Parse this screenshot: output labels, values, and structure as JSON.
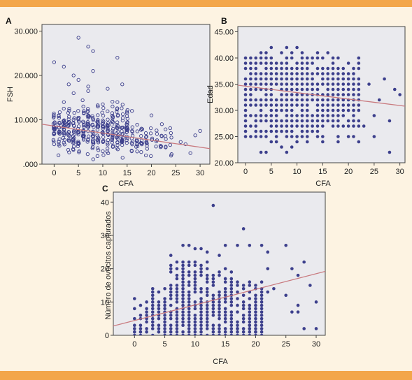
{
  "colors": {
    "frame_bands": "#f3a64a",
    "background": "#fdf3e2",
    "plot_bg": "#eaeaee",
    "points": "#3c3f8c",
    "fit_line": "#c97a7f"
  },
  "chart_data": [
    {
      "panel": "A",
      "type": "scatter",
      "xlabel": "CFA",
      "ylabel": "FSH",
      "xlim": [
        -2.5,
        32
      ],
      "ylim": [
        0,
        31500
      ],
      "x_ticks": [
        "0",
        "5",
        "10",
        "15",
        "20",
        "25",
        "30"
      ],
      "y_ticks": [
        ".000",
        "10.000",
        "20.000",
        "30.000"
      ],
      "marker": "open-circle",
      "fit_line": {
        "x": [
          -2.5,
          32
        ],
        "y": [
          9000,
          3500
        ]
      },
      "points": [
        [
          0,
          23000
        ],
        [
          2,
          22000
        ],
        [
          2,
          14000
        ],
        [
          3,
          18000
        ],
        [
          4,
          20000
        ],
        [
          4,
          16000
        ],
        [
          5,
          28500
        ],
        [
          5,
          19000
        ],
        [
          6,
          13000
        ],
        [
          7,
          26500
        ],
        [
          7,
          17500
        ],
        [
          7,
          16500
        ],
        [
          8,
          25500
        ],
        [
          8,
          21000
        ],
        [
          9,
          13000
        ],
        [
          10,
          13500
        ],
        [
          11,
          17000
        ],
        [
          12,
          13000
        ],
        [
          13,
          24000
        ],
        [
          13,
          14000
        ],
        [
          14,
          18000
        ],
        [
          15,
          11500
        ],
        [
          16,
          12000
        ],
        [
          20,
          11000
        ],
        [
          26,
          5000
        ],
        [
          27,
          4500
        ],
        [
          28,
          2500
        ],
        [
          29,
          6500
        ],
        [
          30,
          7500
        ],
        [
          24,
          7000
        ],
        [
          22,
          4000
        ]
      ],
      "dense_region": {
        "x_min": 0,
        "x_max": 24,
        "y_min": 300,
        "y_max": 15000,
        "y_center": 7500
      }
    },
    {
      "panel": "B",
      "type": "scatter",
      "xlabel": "CFA",
      "ylabel": "Edad",
      "xlim": [
        -1.5,
        31
      ],
      "ylim": [
        20,
        46
      ],
      "x_ticks": [
        "0",
        "5",
        "10",
        "15",
        "20",
        "25",
        "30"
      ],
      "y_ticks": [
        "20.00",
        "25.00",
        "30.00",
        "35.00",
        "40.00",
        "45.00"
      ],
      "marker": "filled-circle",
      "fit_line": {
        "x": [
          -1.5,
          31
        ],
        "y": [
          34.8,
          30.8
        ]
      },
      "points": [
        [
          3,
          22
        ],
        [
          4,
          22
        ],
        [
          8,
          22
        ],
        [
          28,
          22
        ],
        [
          9,
          23
        ],
        [
          7,
          23
        ],
        [
          5,
          24
        ],
        [
          25,
          25
        ],
        [
          26,
          32
        ],
        [
          27,
          36
        ],
        [
          28,
          28
        ],
        [
          29,
          34
        ],
        [
          30,
          33
        ],
        [
          22,
          39
        ],
        [
          20,
          39
        ],
        [
          21,
          25
        ],
        [
          23,
          27
        ],
        [
          25,
          29
        ],
        [
          24,
          35
        ],
        [
          5,
          42
        ],
        [
          8,
          42
        ],
        [
          10,
          42
        ],
        [
          7,
          41
        ],
        [
          9,
          41
        ],
        [
          11,
          41
        ]
      ],
      "grid_rows": {
        "x_min": 0,
        "x_max": 22,
        "y_min": 24,
        "y_max": 41
      }
    },
    {
      "panel": "C",
      "type": "scatter",
      "xlabel": "CFA",
      "ylabel": "Número de ovocitos capturados",
      "xlim": [
        -3.5,
        31.5
      ],
      "ylim": [
        0,
        43
      ],
      "x_ticks": [
        "0",
        "5",
        "10",
        "15",
        "20",
        "25",
        "30"
      ],
      "y_ticks": [
        "0",
        "10",
        "20",
        "30",
        "40"
      ],
      "marker": "filled-circle",
      "fit_line": {
        "x": [
          -3.5,
          31.5
        ],
        "y": [
          2.8,
          19.2
        ]
      },
      "points": [
        [
          13,
          39
        ],
        [
          18,
          32
        ],
        [
          15,
          27
        ],
        [
          17,
          27
        ],
        [
          19,
          27
        ],
        [
          21,
          27
        ],
        [
          25,
          27
        ],
        [
          22,
          25
        ],
        [
          28,
          22
        ],
        [
          26,
          20
        ],
        [
          27,
          18
        ],
        [
          29,
          15
        ],
        [
          30,
          10
        ],
        [
          25,
          12
        ],
        [
          26,
          7
        ],
        [
          27,
          7
        ],
        [
          27,
          9
        ],
        [
          28,
          2
        ],
        [
          30,
          2
        ],
        [
          20,
          1
        ],
        [
          19,
          3
        ],
        [
          17,
          2
        ],
        [
          19,
          2
        ],
        [
          21,
          16
        ],
        [
          22,
          13
        ],
        [
          0,
          11
        ],
        [
          1,
          9
        ],
        [
          0,
          8
        ],
        [
          2,
          10
        ],
        [
          22,
          20
        ],
        [
          23,
          14
        ],
        [
          6,
          24
        ],
        [
          8,
          27
        ],
        [
          9,
          27
        ],
        [
          10,
          26
        ],
        [
          11,
          26
        ],
        [
          12,
          25
        ],
        [
          14,
          24
        ]
      ],
      "grid_region": {
        "x_min": 0,
        "x_max": 21,
        "y_min": 0,
        "y_max": 23
      }
    }
  ]
}
